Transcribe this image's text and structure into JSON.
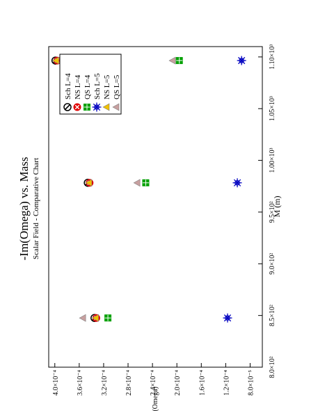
{
  "chart_data": {
    "type": "scatter",
    "title": "-Im(Omega) vs. Mass",
    "subtitle": "Scalar Field - Comparative Chart",
    "xlabel": "M (m)",
    "ylabel": "-Im(Omega)",
    "xlim": [
      800,
      1110
    ],
    "ylim": [
      6e-05,
      0.00041
    ],
    "x_ticks": [
      {
        "value": 800,
        "label": "8.0×10²"
      },
      {
        "value": 850,
        "label": "8.5×10²"
      },
      {
        "value": 900,
        "label": "9.0×10²"
      },
      {
        "value": 950,
        "label": "9.5×10²"
      },
      {
        "value": 1000,
        "label": "1.00×10³"
      },
      {
        "value": 1050,
        "label": "1.05×10³"
      },
      {
        "value": 1100,
        "label": "1.10×10³"
      }
    ],
    "y_ticks": [
      {
        "value": 8e-05,
        "label": "8.0×10⁻⁵"
      },
      {
        "value": 0.00012,
        "label": "1.2×10⁻⁴"
      },
      {
        "value": 0.00016,
        "label": "1.6×10⁻⁴"
      },
      {
        "value": 0.0002,
        "label": "2.0×10⁻⁴"
      },
      {
        "value": 0.00024,
        "label": "2.4×10⁻⁴"
      },
      {
        "value": 0.00028,
        "label": "2.8×10⁻⁴"
      },
      {
        "value": 0.00032,
        "label": "3.2×10⁻⁴"
      },
      {
        "value": 0.00036,
        "label": "3.6×10⁻⁴"
      },
      {
        "value": 0.0004,
        "label": "4.0×10⁻⁴"
      }
    ],
    "grid": false,
    "legend_position": "top-right",
    "series": [
      {
        "name": "Sch L=4",
        "marker": "circle-slash",
        "color": "#000000",
        "points": [
          {
            "x": 847.6,
            "y": 0.000335
          },
          {
            "x": 978.3,
            "y": 0.000346
          },
          {
            "x": 1096.5,
            "y": 0.000399
          }
        ]
      },
      {
        "name": "NS L=4",
        "marker": "circle-x",
        "color": "#e00000",
        "points": [
          {
            "x": 847.6,
            "y": 0.000332
          },
          {
            "x": 978.3,
            "y": 0.000343
          },
          {
            "x": 1096.5,
            "y": 0.000396
          }
        ]
      },
      {
        "name": "QS L=4",
        "marker": "square-plus",
        "color": "#00a000",
        "points": [
          {
            "x": 847.6,
            "y": 0.000313
          },
          {
            "x": 978.3,
            "y": 0.000251
          },
          {
            "x": 1096.5,
            "y": 0.000196
          }
        ]
      },
      {
        "name": "Sch L=5",
        "marker": "asterisk",
        "color": "#0000c0",
        "points": [
          {
            "x": 847.6,
            "y": 0.000117
          },
          {
            "x": 978.3,
            "y": 0.000101
          },
          {
            "x": 1096.5,
            "y": 9.4e-05
          }
        ]
      },
      {
        "name": "NS L=5",
        "marker": "triangle",
        "color": "#f0c000",
        "points": [
          {
            "x": 847.6,
            "y": 0.000333
          },
          {
            "x": 978.3,
            "y": 0.000344
          },
          {
            "x": 1096.5,
            "y": 0.000398
          }
        ]
      },
      {
        "name": "QS L=5",
        "marker": "triangle",
        "color": "#c8a0a0",
        "points": [
          {
            "x": 847.6,
            "y": 0.000354
          },
          {
            "x": 978.3,
            "y": 0.000265
          },
          {
            "x": 1096.5,
            "y": 0.000207
          }
        ]
      }
    ]
  }
}
